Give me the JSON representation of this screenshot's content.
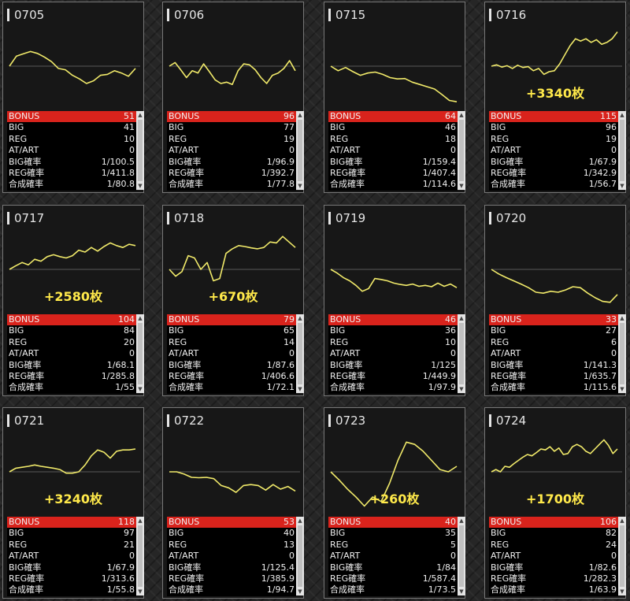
{
  "labels": {
    "bonus": "BONUS",
    "big": "BIG",
    "reg": "REG",
    "at": "AT/ART",
    "big_rate": "BIG確率",
    "reg_rate": "REG確率",
    "total_rate": "合成確率"
  },
  "colors": {
    "line": "#f1ea6a",
    "zero_line": "#5a5a5a",
    "bonus_row": "#d9231c",
    "diff_text": "#ffe94a"
  },
  "panels": [
    {
      "id": "0705",
      "diff": "",
      "stats": {
        "bonus": "51",
        "big": "41",
        "reg": "10",
        "at": "0",
        "big_rate": "1/100.5",
        "reg_rate": "1/411.8",
        "total_rate": "1/80.8"
      }
    },
    {
      "id": "0706",
      "diff": "",
      "stats": {
        "bonus": "96",
        "big": "77",
        "reg": "19",
        "at": "0",
        "big_rate": "1/96.9",
        "reg_rate": "1/392.7",
        "total_rate": "1/77.8"
      }
    },
    {
      "id": "0715",
      "diff": "",
      "stats": {
        "bonus": "64",
        "big": "46",
        "reg": "18",
        "at": "0",
        "big_rate": "1/159.4",
        "reg_rate": "1/407.4",
        "total_rate": "1/114.6"
      }
    },
    {
      "id": "0716",
      "diff": "+3340枚",
      "stats": {
        "bonus": "115",
        "big": "96",
        "reg": "19",
        "at": "0",
        "big_rate": "1/67.9",
        "reg_rate": "1/342.9",
        "total_rate": "1/56.7"
      }
    },
    {
      "id": "0717",
      "diff": "+2580枚",
      "stats": {
        "bonus": "104",
        "big": "84",
        "reg": "20",
        "at": "0",
        "big_rate": "1/68.1",
        "reg_rate": "1/285.8",
        "total_rate": "1/55"
      }
    },
    {
      "id": "0718",
      "diff": "+670枚",
      "stats": {
        "bonus": "79",
        "big": "65",
        "reg": "14",
        "at": "0",
        "big_rate": "1/87.6",
        "reg_rate": "1/406.6",
        "total_rate": "1/72.1"
      }
    },
    {
      "id": "0719",
      "diff": "",
      "stats": {
        "bonus": "46",
        "big": "36",
        "reg": "10",
        "at": "0",
        "big_rate": "1/125",
        "reg_rate": "1/449.9",
        "total_rate": "1/97.9"
      }
    },
    {
      "id": "0720",
      "diff": "",
      "stats": {
        "bonus": "33",
        "big": "27",
        "reg": "6",
        "at": "0",
        "big_rate": "1/141.3",
        "reg_rate": "1/635.7",
        "total_rate": "1/115.6"
      }
    },
    {
      "id": "0721",
      "diff": "+3240枚",
      "stats": {
        "bonus": "118",
        "big": "97",
        "reg": "21",
        "at": "0",
        "big_rate": "1/67.9",
        "reg_rate": "1/313.6",
        "total_rate": "1/55.8"
      }
    },
    {
      "id": "0722",
      "diff": "",
      "stats": {
        "bonus": "53",
        "big": "40",
        "reg": "13",
        "at": "0",
        "big_rate": "1/125.4",
        "reg_rate": "1/385.9",
        "total_rate": "1/94.7"
      }
    },
    {
      "id": "0723",
      "diff": "+260枚",
      "stats": {
        "bonus": "40",
        "big": "35",
        "reg": "5",
        "at": "0",
        "big_rate": "1/84",
        "reg_rate": "1/587.4",
        "total_rate": "1/73.5"
      }
    },
    {
      "id": "0724",
      "diff": "+1700枚",
      "stats": {
        "bonus": "106",
        "big": "82",
        "reg": "24",
        "at": "0",
        "big_rate": "1/82.6",
        "reg_rate": "1/282.3",
        "total_rate": "1/63.9"
      }
    }
  ],
  "chart_data": [
    {
      "type": "line",
      "machine": "0705",
      "y": [
        0,
        22,
        27,
        32,
        28,
        20,
        10,
        -5,
        -8,
        -20,
        -28,
        -38,
        -32,
        -20,
        -18,
        -10,
        -15,
        -22,
        -5
      ],
      "ylim": [
        -80,
        80
      ],
      "grid": false
    },
    {
      "type": "line",
      "machine": "0706",
      "y": [
        0,
        8,
        -8,
        -25,
        -10,
        -15,
        5,
        -12,
        -30,
        -38,
        -35,
        -40,
        -10,
        5,
        3,
        -8,
        -25,
        -38,
        -20,
        -15,
        -5,
        12,
        -10
      ],
      "ylim": [
        -80,
        80
      ],
      "grid": false
    },
    {
      "type": "line",
      "machine": "0715",
      "y": [
        0,
        -10,
        -3,
        -12,
        -20,
        -15,
        -13,
        -18,
        -25,
        -28,
        -27,
        -35,
        -40,
        -45,
        -50,
        -62,
        -75,
        -78
      ],
      "ylim": [
        -80,
        80
      ],
      "grid": false
    },
    {
      "type": "line",
      "machine": "0716",
      "y": [
        0,
        3,
        -2,
        1,
        -5,
        2,
        -3,
        -1,
        -10,
        -5,
        -18,
        -12,
        -10,
        5,
        25,
        45,
        60,
        55,
        60,
        52,
        58,
        48,
        52,
        60,
        75
      ],
      "ylim": [
        -80,
        80
      ],
      "grid": false
    },
    {
      "type": "line",
      "machine": "0717",
      "y": [
        0,
        8,
        15,
        10,
        22,
        18,
        28,
        32,
        28,
        25,
        30,
        42,
        38,
        48,
        40,
        50,
        58,
        52,
        48,
        55,
        52
      ],
      "ylim": [
        -80,
        80
      ],
      "grid": false
    },
    {
      "type": "line",
      "machine": "0718",
      "y": [
        0,
        -15,
        -5,
        30,
        25,
        0,
        15,
        -25,
        -20,
        35,
        45,
        52,
        50,
        47,
        45,
        48,
        60,
        58,
        72,
        60,
        48
      ],
      "ylim": [
        -80,
        80
      ],
      "grid": false
    },
    {
      "type": "line",
      "machine": "0719",
      "y": [
        0,
        -8,
        -18,
        -25,
        -35,
        -48,
        -42,
        -20,
        -22,
        -25,
        -30,
        -33,
        -35,
        -32,
        -37,
        -35,
        -38,
        -30,
        -37,
        -32,
        -40
      ],
      "ylim": [
        -80,
        80
      ],
      "grid": false
    },
    {
      "type": "line",
      "machine": "0720",
      "y": [
        0,
        -10,
        -18,
        -25,
        -32,
        -40,
        -50,
        -52,
        -48,
        -50,
        -45,
        -38,
        -40,
        -52,
        -62,
        -70,
        -72,
        -55
      ],
      "ylim": [
        -80,
        80
      ],
      "grid": false
    },
    {
      "type": "line",
      "machine": "0721",
      "y": [
        0,
        8,
        10,
        12,
        15,
        12,
        10,
        8,
        5,
        -3,
        -3,
        0,
        15,
        35,
        48,
        43,
        30,
        45,
        48,
        48,
        50
      ],
      "ylim": [
        -80,
        80
      ],
      "grid": false
    },
    {
      "type": "line",
      "machine": "0722",
      "y": [
        0,
        0,
        -5,
        -12,
        -13,
        -12,
        -15,
        -30,
        -35,
        -45,
        -30,
        -28,
        -30,
        -40,
        -28,
        -38,
        -32,
        -42
      ],
      "ylim": [
        -80,
        80
      ],
      "grid": false
    },
    {
      "type": "line",
      "machine": "0723",
      "y": [
        0,
        -18,
        -38,
        -55,
        -75,
        -55,
        -65,
        -25,
        25,
        65,
        60,
        45,
        25,
        5,
        0,
        12
      ],
      "ylim": [
        -80,
        80
      ],
      "grid": false
    },
    {
      "type": "line",
      "machine": "0724",
      "y": [
        0,
        5,
        0,
        12,
        10,
        18,
        25,
        32,
        38,
        35,
        42,
        50,
        48,
        55,
        45,
        52,
        38,
        40,
        55,
        60,
        55,
        45,
        40,
        50,
        60,
        70,
        58,
        40,
        50
      ],
      "ylim": [
        -80,
        80
      ],
      "grid": false
    }
  ]
}
